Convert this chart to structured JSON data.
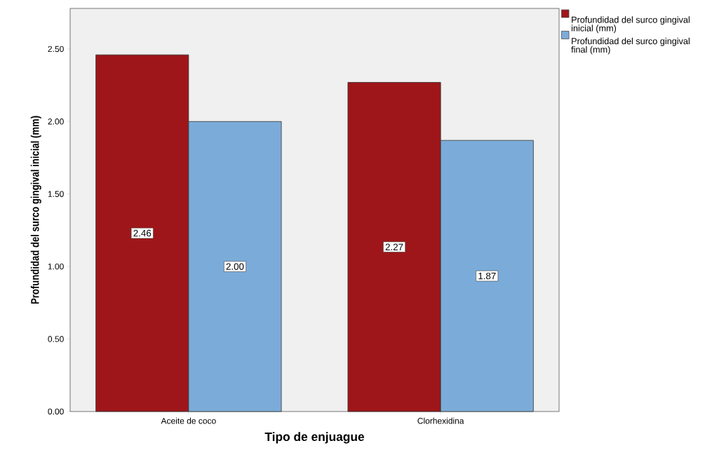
{
  "chart_data": {
    "type": "bar",
    "xlabel": "Tipo de enjuague",
    "ylabel": "Profundidad del surco gingival inicial (mm)",
    "categories": [
      "Aceite de coco",
      "Clorhexidina"
    ],
    "series": [
      {
        "name": "Profundidad del surco gingival inicial (mm)",
        "color": "#9e1619",
        "values": [
          2.46,
          2.27
        ],
        "value_labels": [
          "2.46",
          "2.27"
        ]
      },
      {
        "name": "Profundidad del surco gingival final (mm)",
        "color": "#7bacd9",
        "values": [
          2.0,
          1.87
        ],
        "value_labels": [
          "2.00",
          "1.87"
        ]
      }
    ],
    "ylim": [
      0,
      2.78
    ],
    "yticks": [
      {
        "value": 0,
        "label": "0.00"
      },
      {
        "value": 0.5,
        "label": "0.50"
      },
      {
        "value": 1,
        "label": "1.00"
      },
      {
        "value": 1.5,
        "label": "1.50"
      },
      {
        "value": 2,
        "label": "2.00"
      },
      {
        "value": 2.5,
        "label": "2.50"
      }
    ],
    "grid": false,
    "legend": "top right"
  }
}
